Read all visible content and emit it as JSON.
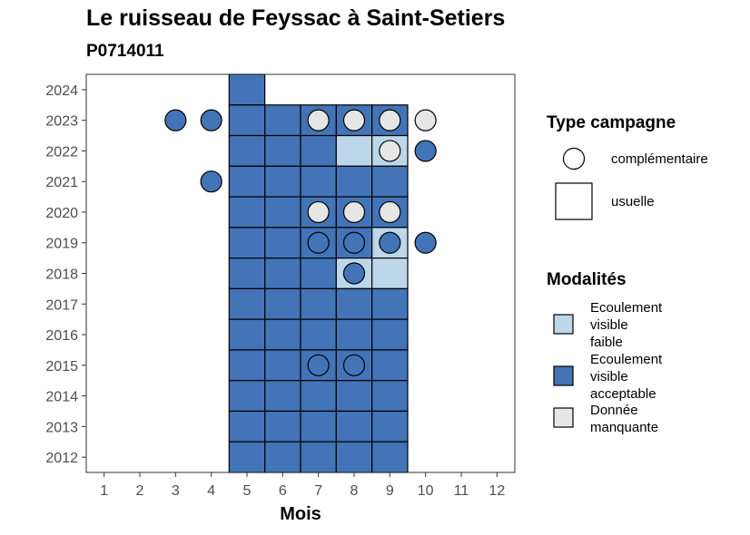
{
  "chart_data": {
    "type": "heatmap",
    "title": "Le ruisseau de Feyssac à Saint-Setiers",
    "subtitle": "P0714011",
    "xlabel": "Mois",
    "ylabel": "",
    "x_ticks": [
      "1",
      "2",
      "3",
      "4",
      "5",
      "6",
      "7",
      "8",
      "9",
      "10",
      "11",
      "12"
    ],
    "y_ticks": [
      "2012",
      "2013",
      "2014",
      "2015",
      "2016",
      "2017",
      "2018",
      "2019",
      "2020",
      "2021",
      "2022",
      "2023",
      "2024"
    ],
    "xlim": [
      0.5,
      12.5
    ],
    "ylim": [
      2011.5,
      2024.5
    ],
    "colors": {
      "Ecoulement visible faible": "#bcd7e9",
      "Ecoulement visible acceptable": "#4374b7",
      "Donnée manquante": "#e6e6e6"
    },
    "legend_type": {
      "title": "Type campagne",
      "items": [
        {
          "label": "complémentaire",
          "shape": "circle"
        },
        {
          "label": "usuelle",
          "shape": "square"
        }
      ]
    },
    "legend_modalites": {
      "title": "Modalités",
      "items": [
        {
          "label_lines": [
            "Ecoulement",
            "visible",
            "faible"
          ],
          "modalite": "Ecoulement visible faible"
        },
        {
          "label_lines": [
            "Ecoulement",
            "visible",
            "acceptable"
          ],
          "modalite": "Ecoulement visible acceptable"
        },
        {
          "label_lines": [
            "Donnée",
            "manquante"
          ],
          "modalite": "Donnée manquante"
        }
      ]
    },
    "legend_placement": "right",
    "usuelle_cells": [
      {
        "year": 2024,
        "month": 5,
        "modalite": "Ecoulement visible acceptable"
      },
      {
        "year": 2023,
        "month": 5,
        "modalite": "Ecoulement visible acceptable"
      },
      {
        "year": 2023,
        "month": 6,
        "modalite": "Ecoulement visible acceptable"
      },
      {
        "year": 2023,
        "month": 7,
        "modalite": "Ecoulement visible acceptable"
      },
      {
        "year": 2023,
        "month": 8,
        "modalite": "Ecoulement visible acceptable"
      },
      {
        "year": 2023,
        "month": 9,
        "modalite": "Ecoulement visible acceptable"
      },
      {
        "year": 2022,
        "month": 5,
        "modalite": "Ecoulement visible acceptable"
      },
      {
        "year": 2022,
        "month": 6,
        "modalite": "Ecoulement visible acceptable"
      },
      {
        "year": 2022,
        "month": 7,
        "modalite": "Ecoulement visible acceptable"
      },
      {
        "year": 2022,
        "month": 8,
        "modalite": "Ecoulement visible faible"
      },
      {
        "year": 2022,
        "month": 9,
        "modalite": "Ecoulement visible faible"
      },
      {
        "year": 2021,
        "month": 5,
        "modalite": "Ecoulement visible acceptable"
      },
      {
        "year": 2021,
        "month": 6,
        "modalite": "Ecoulement visible acceptable"
      },
      {
        "year": 2021,
        "month": 7,
        "modalite": "Ecoulement visible acceptable"
      },
      {
        "year": 2021,
        "month": 8,
        "modalite": "Ecoulement visible acceptable"
      },
      {
        "year": 2021,
        "month": 9,
        "modalite": "Ecoulement visible acceptable"
      },
      {
        "year": 2020,
        "month": 5,
        "modalite": "Ecoulement visible acceptable"
      },
      {
        "year": 2020,
        "month": 6,
        "modalite": "Ecoulement visible acceptable"
      },
      {
        "year": 2020,
        "month": 7,
        "modalite": "Ecoulement visible acceptable"
      },
      {
        "year": 2020,
        "month": 8,
        "modalite": "Ecoulement visible acceptable"
      },
      {
        "year": 2020,
        "month": 9,
        "modalite": "Ecoulement visible acceptable"
      },
      {
        "year": 2019,
        "month": 5,
        "modalite": "Ecoulement visible acceptable"
      },
      {
        "year": 2019,
        "month": 6,
        "modalite": "Ecoulement visible acceptable"
      },
      {
        "year": 2019,
        "month": 7,
        "modalite": "Ecoulement visible acceptable"
      },
      {
        "year": 2019,
        "month": 8,
        "modalite": "Ecoulement visible acceptable"
      },
      {
        "year": 2019,
        "month": 9,
        "modalite": "Ecoulement visible faible"
      },
      {
        "year": 2018,
        "month": 5,
        "modalite": "Ecoulement visible acceptable"
      },
      {
        "year": 2018,
        "month": 6,
        "modalite": "Ecoulement visible acceptable"
      },
      {
        "year": 2018,
        "month": 7,
        "modalite": "Ecoulement visible acceptable"
      },
      {
        "year": 2018,
        "month": 8,
        "modalite": "Ecoulement visible faible"
      },
      {
        "year": 2018,
        "month": 9,
        "modalite": "Ecoulement visible faible"
      },
      {
        "year": 2017,
        "month": 5,
        "modalite": "Ecoulement visible acceptable"
      },
      {
        "year": 2017,
        "month": 6,
        "modalite": "Ecoulement visible acceptable"
      },
      {
        "year": 2017,
        "month": 7,
        "modalite": "Ecoulement visible acceptable"
      },
      {
        "year": 2017,
        "month": 8,
        "modalite": "Ecoulement visible acceptable"
      },
      {
        "year": 2017,
        "month": 9,
        "modalite": "Ecoulement visible acceptable"
      },
      {
        "year": 2016,
        "month": 5,
        "modalite": "Ecoulement visible acceptable"
      },
      {
        "year": 2016,
        "month": 6,
        "modalite": "Ecoulement visible acceptable"
      },
      {
        "year": 2016,
        "month": 7,
        "modalite": "Ecoulement visible acceptable"
      },
      {
        "year": 2016,
        "month": 8,
        "modalite": "Ecoulement visible acceptable"
      },
      {
        "year": 2016,
        "month": 9,
        "modalite": "Ecoulement visible acceptable"
      },
      {
        "year": 2015,
        "month": 5,
        "modalite": "Ecoulement visible acceptable"
      },
      {
        "year": 2015,
        "month": 6,
        "modalite": "Ecoulement visible acceptable"
      },
      {
        "year": 2015,
        "month": 7,
        "modalite": "Ecoulement visible acceptable"
      },
      {
        "year": 2015,
        "month": 8,
        "modalite": "Ecoulement visible acceptable"
      },
      {
        "year": 2015,
        "month": 9,
        "modalite": "Ecoulement visible acceptable"
      },
      {
        "year": 2014,
        "month": 5,
        "modalite": "Ecoulement visible acceptable"
      },
      {
        "year": 2014,
        "month": 6,
        "modalite": "Ecoulement visible acceptable"
      },
      {
        "year": 2014,
        "month": 7,
        "modalite": "Ecoulement visible acceptable"
      },
      {
        "year": 2014,
        "month": 8,
        "modalite": "Ecoulement visible acceptable"
      },
      {
        "year": 2014,
        "month": 9,
        "modalite": "Ecoulement visible acceptable"
      },
      {
        "year": 2013,
        "month": 5,
        "modalite": "Ecoulement visible acceptable"
      },
      {
        "year": 2013,
        "month": 6,
        "modalite": "Ecoulement visible acceptable"
      },
      {
        "year": 2013,
        "month": 7,
        "modalite": "Ecoulement visible acceptable"
      },
      {
        "year": 2013,
        "month": 8,
        "modalite": "Ecoulement visible acceptable"
      },
      {
        "year": 2013,
        "month": 9,
        "modalite": "Ecoulement visible acceptable"
      },
      {
        "year": 2012,
        "month": 5,
        "modalite": "Ecoulement visible acceptable"
      },
      {
        "year": 2012,
        "month": 6,
        "modalite": "Ecoulement visible acceptable"
      },
      {
        "year": 2012,
        "month": 7,
        "modalite": "Ecoulement visible acceptable"
      },
      {
        "year": 2012,
        "month": 8,
        "modalite": "Ecoulement visible acceptable"
      },
      {
        "year": 2012,
        "month": 9,
        "modalite": "Ecoulement visible acceptable"
      }
    ],
    "complementaire_points": [
      {
        "year": 2023,
        "month": 3,
        "modalite": "Ecoulement visible acceptable"
      },
      {
        "year": 2023,
        "month": 4,
        "modalite": "Ecoulement visible acceptable"
      },
      {
        "year": 2023,
        "month": 7,
        "modalite": "Donnée manquante"
      },
      {
        "year": 2023,
        "month": 8,
        "modalite": "Donnée manquante"
      },
      {
        "year": 2023,
        "month": 9,
        "modalite": "Donnée manquante"
      },
      {
        "year": 2023,
        "month": 10,
        "modalite": "Donnée manquante"
      },
      {
        "year": 2022,
        "month": 9,
        "modalite": "Donnée manquante"
      },
      {
        "year": 2022,
        "month": 10,
        "modalite": "Ecoulement visible acceptable"
      },
      {
        "year": 2021,
        "month": 4,
        "modalite": "Ecoulement visible acceptable"
      },
      {
        "year": 2020,
        "month": 7,
        "modalite": "Donnée manquante"
      },
      {
        "year": 2020,
        "month": 8,
        "modalite": "Donnée manquante"
      },
      {
        "year": 2020,
        "month": 9,
        "modalite": "Donnée manquante"
      },
      {
        "year": 2019,
        "month": 7,
        "modalite": "Ecoulement visible acceptable"
      },
      {
        "year": 2019,
        "month": 8,
        "modalite": "Ecoulement visible acceptable"
      },
      {
        "year": 2019,
        "month": 9,
        "modalite": "Ecoulement visible acceptable"
      },
      {
        "year": 2019,
        "month": 10,
        "modalite": "Ecoulement visible acceptable"
      },
      {
        "year": 2018,
        "month": 8,
        "modalite": "Ecoulement visible acceptable"
      },
      {
        "year": 2015,
        "month": 7,
        "modalite": "Ecoulement visible acceptable"
      },
      {
        "year": 2015,
        "month": 8,
        "modalite": "Ecoulement visible acceptable"
      }
    ]
  }
}
